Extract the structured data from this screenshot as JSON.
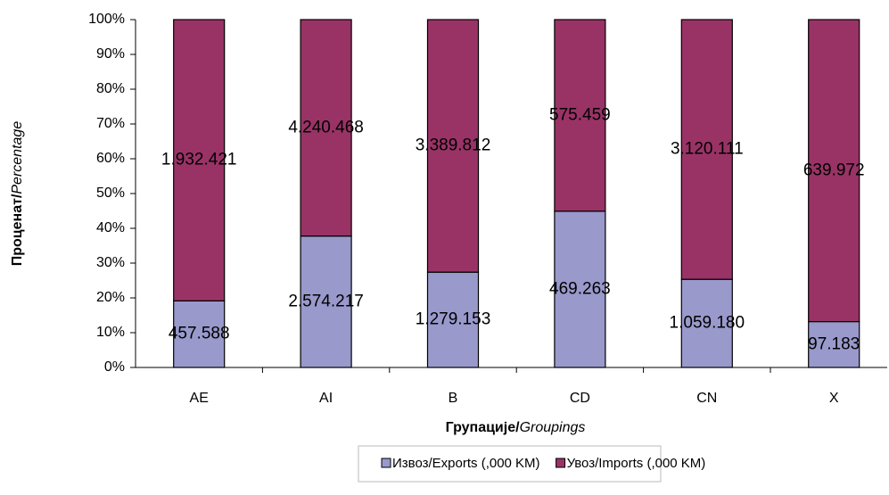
{
  "chart_data": {
    "type": "bar",
    "stacking": "percent",
    "xlabel": "Групације/Groupings",
    "ylabel": "Проценат/Percentage",
    "categories": [
      "AE",
      "AI",
      "B",
      "CD",
      "CN",
      "X"
    ],
    "series": [
      {
        "name": "Извоз/Exports (,000 KM)",
        "color": "#9999cc",
        "values": [
          457588,
          2574217,
          1279153,
          469263,
          1059180,
          97183
        ],
        "value_labels": [
          "457.588",
          "2.574.217",
          "1.279.153",
          "469.263",
          "1.059.180",
          "97.183"
        ]
      },
      {
        "name": "Увоз/Imports (,000 KM)",
        "color": "#993366",
        "values": [
          1932421,
          4240468,
          3389812,
          575459,
          3120111,
          639972
        ],
        "value_labels": [
          "1.932.421",
          "4.240.468",
          "3.389.812",
          "575.459",
          "3.120.111",
          "639.972"
        ]
      }
    ],
    "ylim": [
      0,
      100
    ],
    "yticks": [
      {
        "value": 0,
        "label": "0%"
      },
      {
        "value": 10,
        "label": "10%"
      },
      {
        "value": 20,
        "label": "20%"
      },
      {
        "value": 30,
        "label": "30%"
      },
      {
        "value": 40,
        "label": "40%"
      },
      {
        "value": 50,
        "label": "50%"
      },
      {
        "value": 60,
        "label": "60%"
      },
      {
        "value": 70,
        "label": "70%"
      },
      {
        "value": 80,
        "label": "80%"
      },
      {
        "value": 90,
        "label": "90%"
      },
      {
        "value": 100,
        "label": "100%"
      }
    ],
    "grid": false,
    "legend": "bottom"
  }
}
